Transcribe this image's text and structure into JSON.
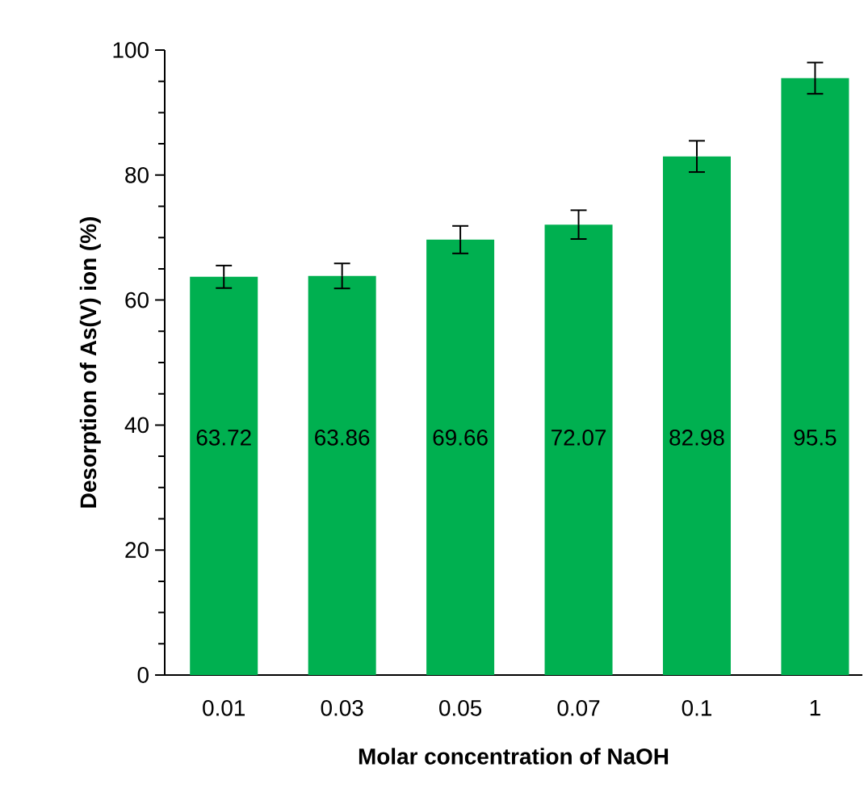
{
  "chart_data": {
    "type": "bar",
    "xlabel": "Molar concentration of NaOH",
    "ylabel": "Desorption of As(V) ion  (%)",
    "categories": [
      "0.01",
      "0.03",
      "0.05",
      "0.07",
      "0.1",
      "1"
    ],
    "values": [
      63.72,
      63.86,
      69.66,
      72.07,
      82.98,
      95.5
    ],
    "errors": [
      1.8,
      2.0,
      2.2,
      2.3,
      2.5,
      2.5
    ],
    "color": "#00b050",
    "data_labels": true,
    "ylim": [
      0,
      100
    ],
    "yticks": [
      0,
      20,
      40,
      60,
      80,
      100
    ]
  }
}
